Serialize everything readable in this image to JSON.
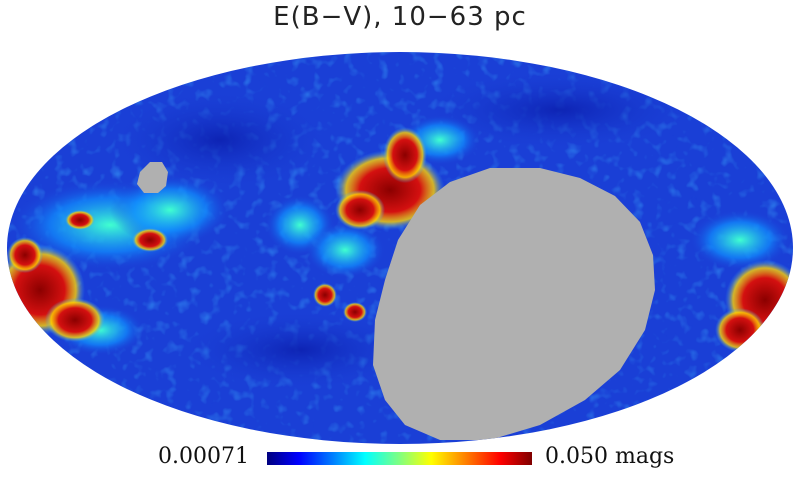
{
  "title": "E(B−V), 10−63 pc",
  "colorbar": {
    "min_label": "0.00071",
    "max_label": "0.050 mags",
    "colormap": "jet",
    "stops": [
      "#00007f",
      "#0000ff",
      "#0080ff",
      "#00ffff",
      "#80ff80",
      "#ffff00",
      "#ff8000",
      "#ff0000",
      "#7f0000"
    ]
  },
  "map": {
    "projection": "mollweide",
    "background_color": "#1a3fd6",
    "masked_color": "#b0b0b0",
    "high_color": "#8b0000"
  }
}
